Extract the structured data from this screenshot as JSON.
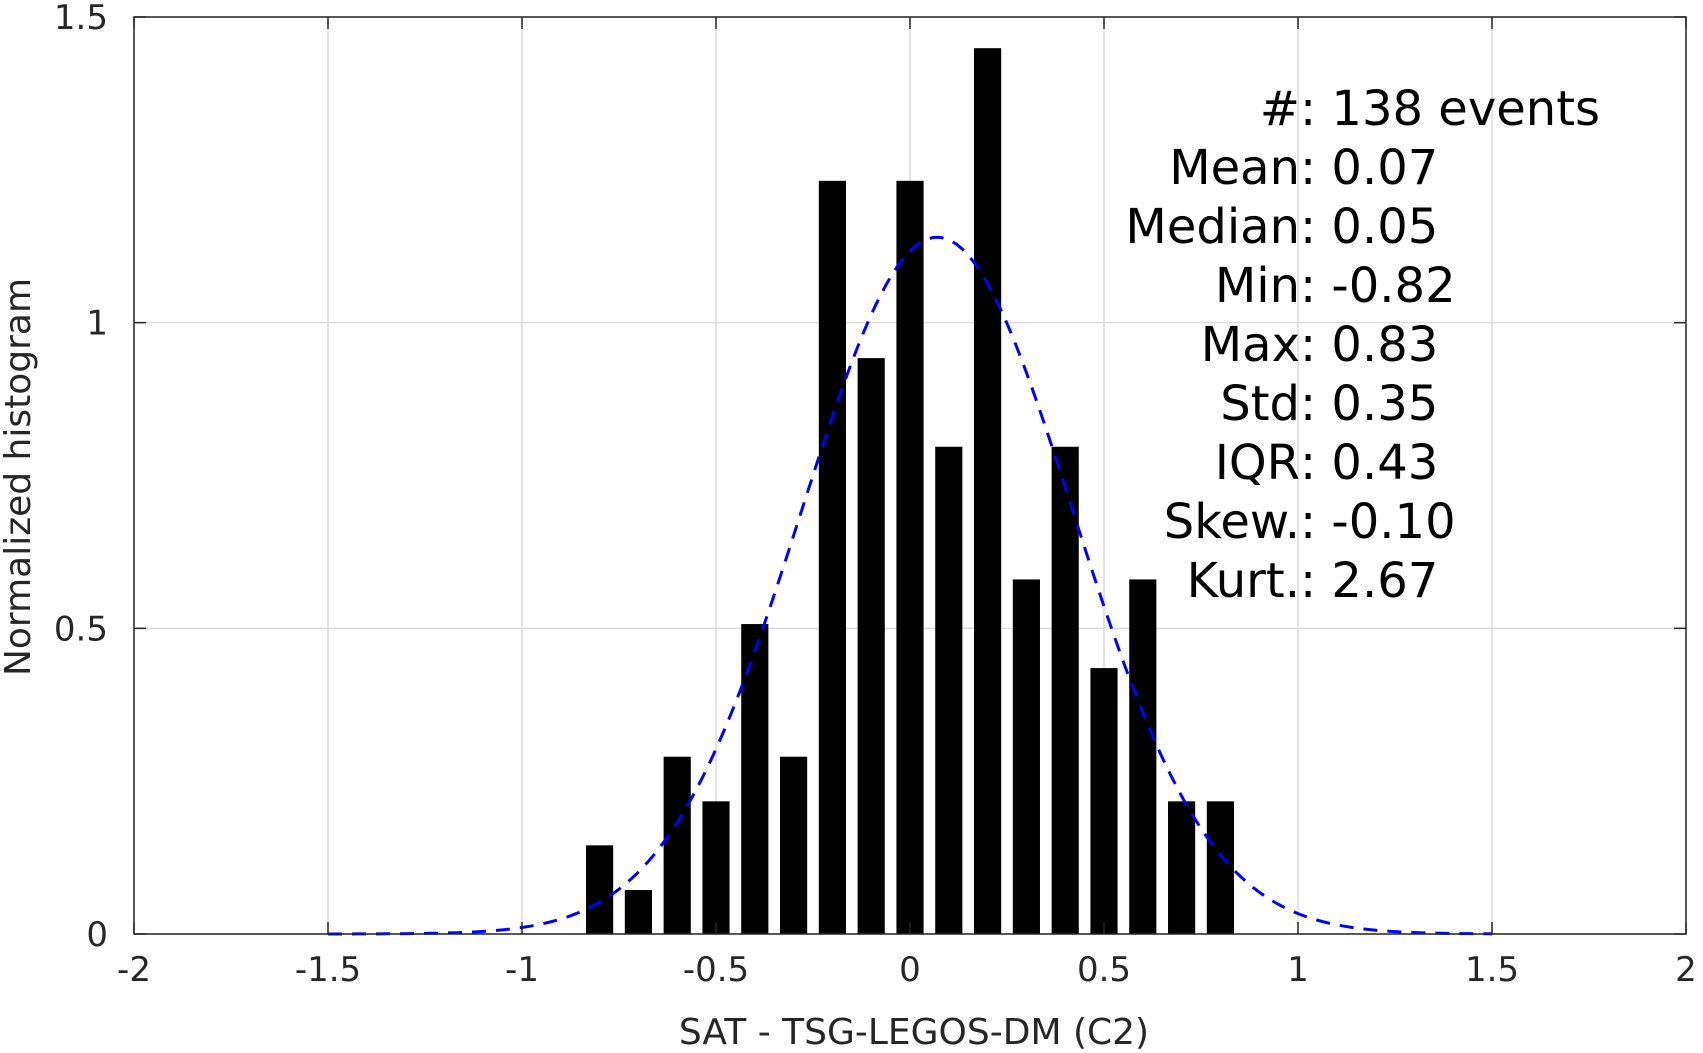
{
  "chart_data": {
    "type": "bar",
    "title": "",
    "xlabel": "SAT - TSG-LEGOS-DM (C2)",
    "ylabel": "Normalized histogram",
    "xlim": [
      -2,
      2
    ],
    "ylim": [
      0,
      1.5
    ],
    "grid": true,
    "x_ticks": [
      -2,
      -1.5,
      -1,
      -0.5,
      0,
      0.5,
      1,
      1.5,
      2
    ],
    "x_tick_labels": [
      "-2",
      "-1.5",
      "-1",
      "-0.5",
      "0",
      "0.5",
      "1",
      "1.5",
      "2"
    ],
    "y_ticks": [
      0,
      0.5,
      1,
      1.5
    ],
    "y_tick_labels": [
      "0",
      "0.5",
      "1",
      "1.5"
    ],
    "bar_width": 0.07,
    "bar_color": "#000000",
    "bars": {
      "x": [
        -0.8,
        -0.7,
        -0.6,
        -0.5,
        -0.4,
        -0.3,
        -0.2,
        -0.1,
        0.0,
        0.1,
        0.2,
        0.3,
        0.4,
        0.5,
        0.6,
        0.7,
        0.8
      ],
      "y": [
        0.145,
        0.072,
        0.29,
        0.217,
        0.507,
        0.29,
        1.232,
        0.942,
        1.232,
        0.797,
        1.449,
        0.58,
        0.797,
        0.435,
        0.58,
        0.217,
        0.217
      ]
    },
    "fit_curve": {
      "style": "dashed",
      "color": "#0000ff",
      "mean": 0.07,
      "std": 0.35,
      "x_range": [
        -1.5,
        1.5
      ]
    },
    "stats": [
      {
        "label": "#  ",
        "value": ": 138 events"
      },
      {
        "label": "Mean ",
        "value": ": 0.07"
      },
      {
        "label": "Median ",
        "value": ": 0.05"
      },
      {
        "label": "Min ",
        "value": ": -0.82"
      },
      {
        "label": "Max ",
        "value": ": 0.83"
      },
      {
        "label": "Std ",
        "value": ": 0.35"
      },
      {
        "label": "IQR ",
        "value": ": 0.43"
      },
      {
        "label": "Skew. ",
        "value": ": -0.10"
      },
      {
        "label": "Kurt. ",
        "value": ": 2.67"
      }
    ]
  }
}
